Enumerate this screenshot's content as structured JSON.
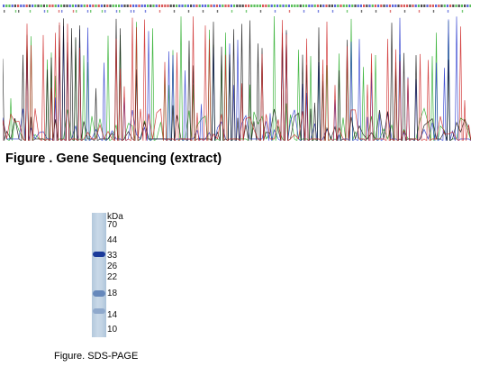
{
  "figure1": {
    "caption": "Figure . Gene Sequencing (extract)",
    "base_colors": {
      "A": "#22aa22",
      "C": "#2233cc",
      "G": "#111111",
      "T": "#cc2222"
    }
  },
  "figure2": {
    "caption": "Figure. SDS-PAGE",
    "unit_label": "kDa",
    "markers": [
      "70",
      "44",
      "33",
      "26",
      "22",
      "18",
      "14",
      "10"
    ],
    "bands": [
      {
        "near_kda": "33",
        "intensity": "strong",
        "color": "#1a3a9a"
      },
      {
        "near_kda": "18",
        "intensity": "medium",
        "color": "#6688bb"
      },
      {
        "near_kda": "14",
        "intensity": "faint",
        "color": "#8fa9cc"
      }
    ]
  }
}
